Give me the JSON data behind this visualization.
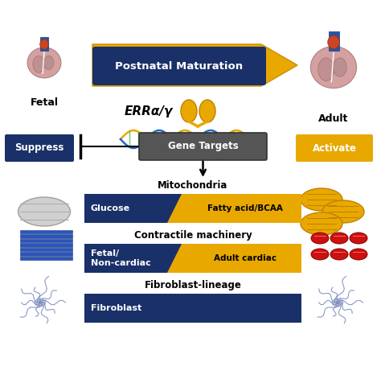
{
  "bg_color": "#ffffff",
  "dark_blue": "#1a3068",
  "gold": "#e8a800",
  "light_gold": "#f0c040",
  "gray_mito": "#c8c8c8",
  "red_muscle": "#cc1111",
  "blue_fiber": "#3355aa",
  "lavender_fiber": "#aabbdd",
  "fetal_label": "Fetal",
  "adult_label": "Adult",
  "arrow_label": "Postnatal Maturation",
  "err_label": "ERRα/γ",
  "gene_label": "Gene Targets",
  "suppress_label": "Suppress",
  "activate_label": "Activate",
  "mito_title": "Mitochondria",
  "mito_left": "Glucose",
  "mito_right": "Fatty acid/BCAA",
  "contract_title": "Contractile machinery",
  "contract_left": "Fetal/\nNon-cardiac",
  "contract_right": "Adult cardiac",
  "fibro_title": "Fibroblast-lineage",
  "fibro_left": "Fibroblast",
  "dna_color1": "#e8a800",
  "dna_color2": "#2266cc",
  "dna_rung": "#44bb44"
}
